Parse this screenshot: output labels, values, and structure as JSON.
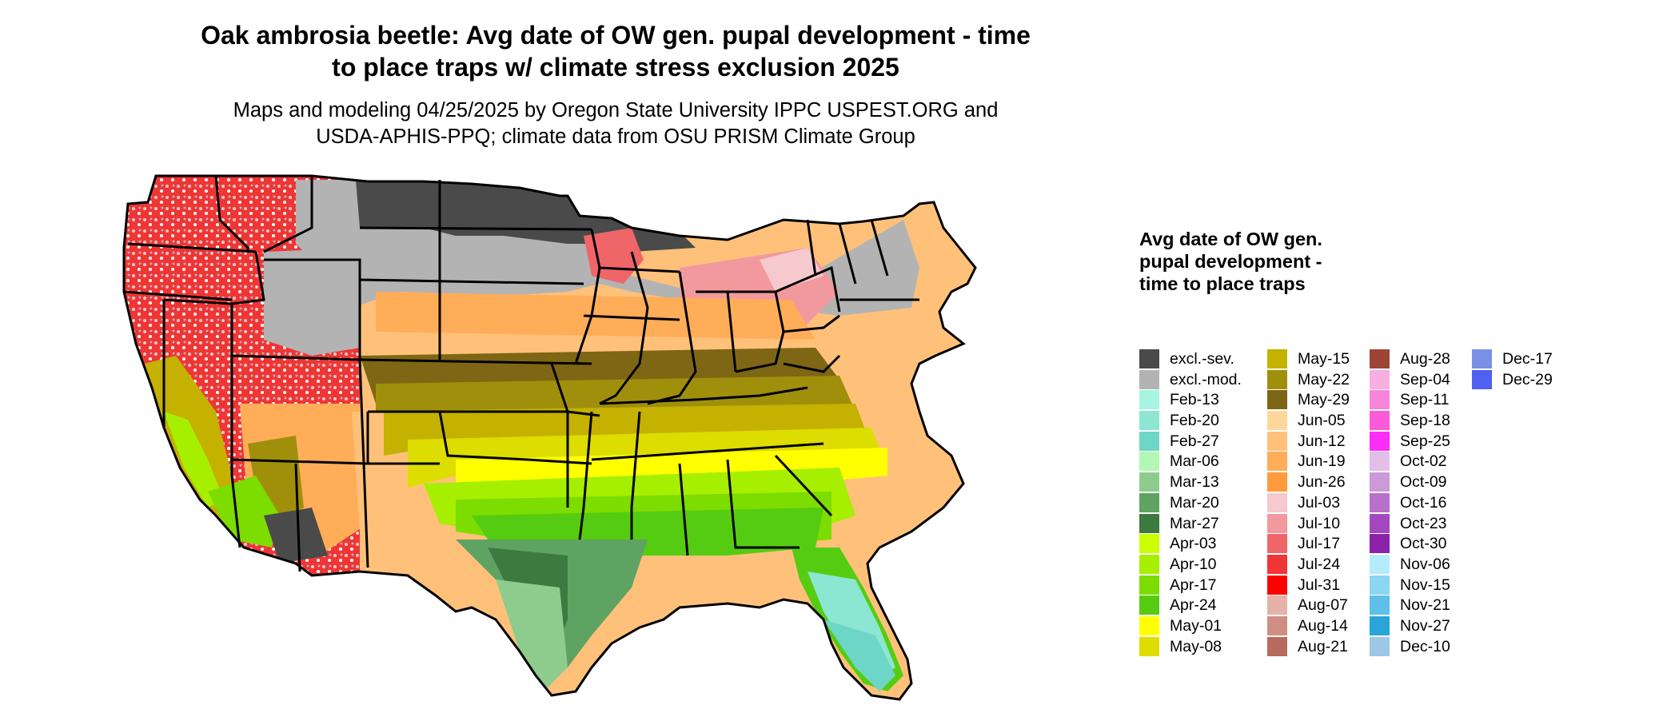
{
  "title_line1": "Oak ambrosia beetle: Avg date of OW gen. pupal development - time",
  "title_line2": "to place traps w/ climate stress exclusion 2025",
  "subtitle_line1": "Maps and modeling 04/25/2025 by Oregon State University IPPC USPEST.ORG and",
  "subtitle_line2": "USDA-APHIS-PPQ; climate data from OSU PRISM Climate Group",
  "legend": {
    "title": "Avg date of OW gen. pupal development - time to place traps",
    "columns": [
      [
        {
          "label": "excl.-sev.",
          "color": "#4a4a4a"
        },
        {
          "label": "excl.-mod.",
          "color": "#b3b3b3"
        },
        {
          "label": "Feb-13",
          "color": "#a6f5e0"
        },
        {
          "label": "Feb-20",
          "color": "#8de6d2"
        },
        {
          "label": "Feb-27",
          "color": "#6ed6c6"
        },
        {
          "label": "Mar-06",
          "color": "#b2f7b6"
        },
        {
          "label": "Mar-13",
          "color": "#8dcc8d"
        },
        {
          "label": "Mar-20",
          "color": "#5fa363"
        },
        {
          "label": "Mar-27",
          "color": "#3d7a3f"
        },
        {
          "label": "Apr-03",
          "color": "#ccff00"
        },
        {
          "label": "Apr-10",
          "color": "#a6ef00"
        },
        {
          "label": "Apr-17",
          "color": "#7ddc00"
        },
        {
          "label": "Apr-24",
          "color": "#55cc11"
        },
        {
          "label": "May-01",
          "color": "#ffff00"
        },
        {
          "label": "May-08",
          "color": "#dddd00"
        }
      ],
      [
        {
          "label": "May-15",
          "color": "#c4b100"
        },
        {
          "label": "May-22",
          "color": "#a08f0b"
        },
        {
          "label": "May-29",
          "color": "#7e6614"
        },
        {
          "label": "Jun-05",
          "color": "#ffd79a"
        },
        {
          "label": "Jun-12",
          "color": "#ffc17a"
        },
        {
          "label": "Jun-19",
          "color": "#ffad58"
        },
        {
          "label": "Jun-26",
          "color": "#ff9a3d"
        },
        {
          "label": "Jul-03",
          "color": "#f5c9cd"
        },
        {
          "label": "Jul-10",
          "color": "#f2999d"
        },
        {
          "label": "Jul-17",
          "color": "#f06568"
        },
        {
          "label": "Jul-24",
          "color": "#f03535"
        },
        {
          "label": "Jul-31",
          "color": "#ff0000"
        },
        {
          "label": "Aug-07",
          "color": "#e5b1a8"
        },
        {
          "label": "Aug-14",
          "color": "#d08e82"
        },
        {
          "label": "Aug-21",
          "color": "#b96a5e"
        }
      ],
      [
        {
          "label": "Aug-28",
          "color": "#9e4437"
        },
        {
          "label": "Sep-04",
          "color": "#f7aee0"
        },
        {
          "label": "Sep-11",
          "color": "#f985da"
        },
        {
          "label": "Sep-18",
          "color": "#fb5ad9"
        },
        {
          "label": "Sep-25",
          "color": "#fc2df6"
        },
        {
          "label": "Oct-02",
          "color": "#e3bfe8"
        },
        {
          "label": "Oct-09",
          "color": "#cd9ad9"
        },
        {
          "label": "Oct-16",
          "color": "#b96fcc"
        },
        {
          "label": "Oct-23",
          "color": "#a448bf"
        },
        {
          "label": "Oct-30",
          "color": "#8c21aa"
        },
        {
          "label": "Nov-06",
          "color": "#b4ecfb"
        },
        {
          "label": "Nov-15",
          "color": "#8bd6f0"
        },
        {
          "label": "Nov-21",
          "color": "#5ec0e8"
        },
        {
          "label": "Nov-27",
          "color": "#2aa5d8"
        },
        {
          "label": "Dec-10",
          "color": "#9ec6e6"
        }
      ],
      [
        {
          "label": "Dec-17",
          "color": "#7891e6"
        },
        {
          "label": "Dec-29",
          "color": "#5060f0"
        }
      ]
    ]
  }
}
